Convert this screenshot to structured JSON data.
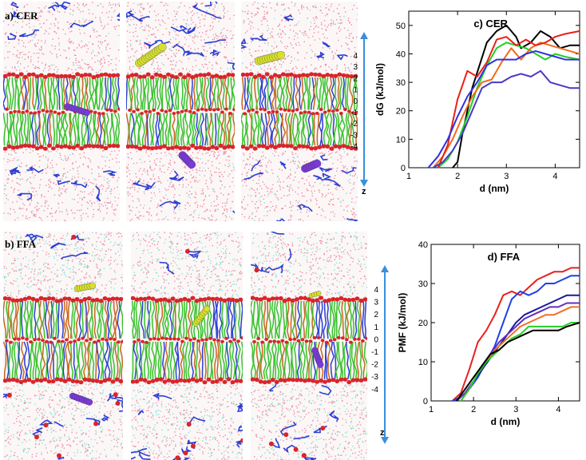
{
  "figure": {
    "panel_a_label": "a) CER",
    "panel_b_label": "b) FFA",
    "z_axis_top": {
      "ticks": [
        "4",
        "3",
        "2",
        "1",
        "0",
        "-1",
        "-2",
        "-3",
        "-4"
      ],
      "axis_label": "z"
    },
    "z_axis_bottom": {
      "ticks": [
        "4",
        "3",
        "2",
        "1",
        "0",
        "-1",
        "-2",
        "-3",
        "-4"
      ],
      "axis_label": "z"
    },
    "colors": {
      "water_pink": "#f08ca0",
      "water_cyan": "#8fe0d8",
      "lipid_green": "#36c22a",
      "headgroup_red": "#d8252a",
      "tail_orange": "#c8661e",
      "chain_blue": "#2b3fd4",
      "solute_yellow": "#d8e030",
      "solute_purple": "#7a3ad8",
      "axis_arrow": "#3a8fe0"
    }
  },
  "chart_data": [
    {
      "type": "line",
      "title": "c) CER",
      "xlabel": "d (nm)",
      "ylabel": "dG (kJ/mol)",
      "xlim": [
        1,
        4.5
      ],
      "ylim": [
        0,
        55
      ],
      "xticks": [
        1,
        2,
        3,
        4
      ],
      "yticks": [
        0,
        10,
        20,
        30,
        40,
        50
      ],
      "series": [
        {
          "name": "black",
          "color": "#000000",
          "x": [
            1.9,
            2.0,
            2.1,
            2.3,
            2.6,
            2.8,
            3.0,
            3.2,
            3.3,
            3.5,
            3.7,
            3.9,
            4.1,
            4.3,
            4.5
          ],
          "y": [
            0,
            2,
            12,
            28,
            44,
            48,
            50,
            46,
            42,
            44,
            48,
            46,
            42,
            43,
            43
          ]
        },
        {
          "name": "green",
          "color": "#22d022",
          "x": [
            1.6,
            1.8,
            2.0,
            2.2,
            2.4,
            2.6,
            2.8,
            3.0,
            3.2,
            3.4,
            3.6,
            3.8,
            4.0,
            4.2,
            4.5
          ],
          "y": [
            0,
            3,
            9,
            18,
            28,
            36,
            42,
            44,
            43,
            42,
            40,
            38,
            40,
            39,
            38
          ]
        },
        {
          "name": "orange",
          "color": "#f06a1a",
          "x": [
            1.5,
            1.7,
            1.9,
            2.1,
            2.3,
            2.5,
            2.7,
            2.9,
            3.1,
            3.3,
            3.5,
            3.7,
            3.9,
            4.1,
            4.3,
            4.5
          ],
          "y": [
            0,
            4,
            10,
            18,
            25,
            30,
            31,
            37,
            42,
            38,
            42,
            44,
            43,
            42,
            41,
            40
          ]
        },
        {
          "name": "red",
          "color": "#e8201a",
          "x": [
            1.6,
            1.8,
            2.0,
            2.2,
            2.4,
            2.6,
            2.8,
            3.0,
            3.2,
            3.4,
            3.6,
            3.8,
            4.0,
            4.2,
            4.5
          ],
          "y": [
            0,
            8,
            24,
            34,
            32,
            37,
            45,
            46,
            43,
            45,
            43,
            44,
            46,
            47,
            48
          ]
        },
        {
          "name": "blue",
          "color": "#3030e0",
          "x": [
            1.4,
            1.6,
            1.8,
            2.0,
            2.2,
            2.4,
            2.6,
            2.8,
            3.0,
            3.2,
            3.4,
            3.6,
            3.8,
            4.0,
            4.2,
            4.5
          ],
          "y": [
            0,
            4,
            10,
            18,
            25,
            30,
            36,
            38,
            38,
            38,
            40,
            41,
            40,
            39,
            38,
            38
          ]
        },
        {
          "name": "blue2",
          "color": "#4a38c8",
          "x": [
            1.5,
            1.7,
            1.9,
            2.1,
            2.3,
            2.5,
            2.7,
            2.9,
            3.1,
            3.3,
            3.5,
            3.7,
            3.9,
            4.1,
            4.3,
            4.5
          ],
          "y": [
            0,
            2,
            6,
            12,
            20,
            28,
            30,
            30,
            32,
            33,
            32,
            34,
            30,
            29,
            28,
            28
          ]
        }
      ]
    },
    {
      "type": "line",
      "title": "d) FFA",
      "xlabel": "d (nm)",
      "ylabel": "PMF (kJ/mol)",
      "xlim": [
        1,
        4.5
      ],
      "ylim": [
        0,
        40
      ],
      "xticks": [
        1,
        2,
        3,
        4
      ],
      "yticks": [
        0,
        10,
        20,
        30,
        40
      ],
      "series": [
        {
          "name": "red",
          "color": "#e82020",
          "x": [
            1.5,
            1.7,
            1.9,
            2.1,
            2.3,
            2.5,
            2.7,
            2.9,
            3.1,
            3.3,
            3.5,
            3.7,
            3.9,
            4.1,
            4.3,
            4.5
          ],
          "y": [
            0,
            2,
            8,
            15,
            18,
            22,
            27,
            28,
            27,
            29,
            31,
            32,
            33,
            33,
            34,
            34
          ]
        },
        {
          "name": "blue",
          "color": "#2040e8",
          "x": [
            1.5,
            1.7,
            1.9,
            2.1,
            2.3,
            2.5,
            2.7,
            2.9,
            3.1,
            3.3,
            3.5,
            3.7,
            3.9,
            4.1,
            4.3,
            4.5
          ],
          "y": [
            0,
            1,
            3,
            6,
            10,
            14,
            20,
            26,
            28,
            27,
            28,
            30,
            30,
            31,
            32,
            32
          ]
        },
        {
          "name": "navy",
          "color": "#1a1a9a",
          "x": [
            1.6,
            1.8,
            2.0,
            2.2,
            2.4,
            2.6,
            2.8,
            3.0,
            3.2,
            3.4,
            3.6,
            3.8,
            4.0,
            4.2,
            4.5
          ],
          "y": [
            0,
            2,
            5,
            8,
            11,
            14,
            17,
            20,
            22,
            23,
            24,
            25,
            26,
            27,
            27
          ]
        },
        {
          "name": "purple",
          "color": "#6030c0",
          "x": [
            1.6,
            1.8,
            2.0,
            2.2,
            2.4,
            2.6,
            2.8,
            3.0,
            3.2,
            3.4,
            3.6,
            3.8,
            4.0,
            4.2,
            4.5
          ],
          "y": [
            0,
            2,
            5,
            9,
            12,
            15,
            17,
            19,
            21,
            22,
            23,
            24,
            24,
            25,
            25
          ]
        },
        {
          "name": "orange",
          "color": "#f07020",
          "x": [
            1.7,
            1.9,
            2.1,
            2.3,
            2.5,
            2.7,
            2.9,
            3.1,
            3.3,
            3.5,
            3.7,
            3.9,
            4.1,
            4.3,
            4.5
          ],
          "y": [
            0,
            3,
            7,
            10,
            13,
            15,
            17,
            19,
            20,
            21,
            22,
            22,
            23,
            24,
            24
          ]
        },
        {
          "name": "green",
          "color": "#28d028",
          "x": [
            1.7,
            1.9,
            2.1,
            2.3,
            2.5,
            2.7,
            2.9,
            3.1,
            3.3,
            3.5,
            3.7,
            3.9,
            4.1,
            4.3,
            4.5
          ],
          "y": [
            0,
            3,
            7,
            10,
            12,
            14,
            16,
            17,
            19,
            19,
            19,
            19,
            19,
            20,
            20
          ]
        },
        {
          "name": "black",
          "color": "#000000",
          "x": [
            1.6,
            1.8,
            2.0,
            2.2,
            2.4,
            2.6,
            2.8,
            3.0,
            3.2,
            3.4,
            3.6,
            3.8,
            4.0,
            4.2,
            4.5
          ],
          "y": [
            0,
            3,
            6,
            9,
            12,
            13,
            15,
            16,
            17,
            18,
            18,
            18,
            18,
            19,
            20
          ]
        }
      ]
    }
  ]
}
